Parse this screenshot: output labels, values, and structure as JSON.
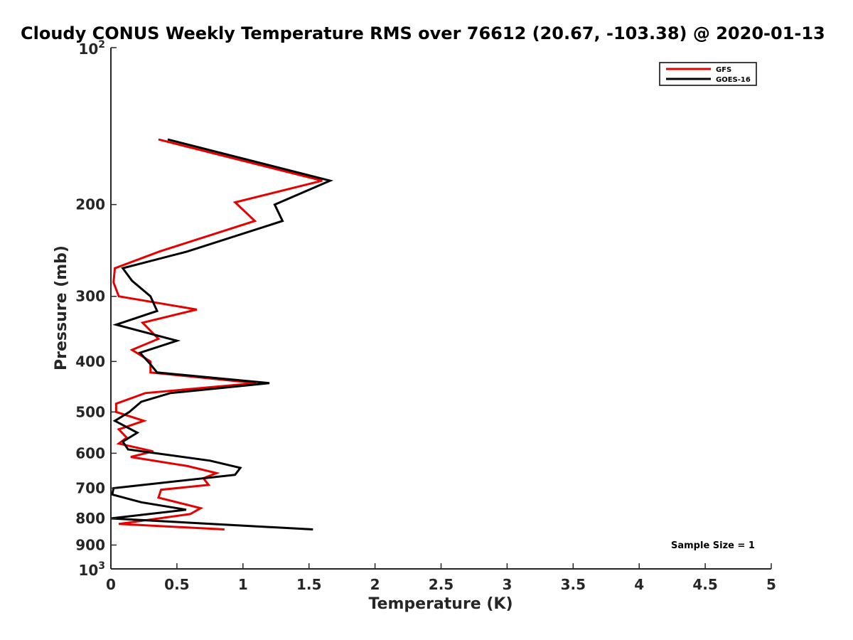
{
  "chart_data": {
    "type": "line",
    "title": "Cloudy CONUS Weekly Temperature RMS over 76612 (20.67, -103.38) @ 2020-01-13",
    "xlabel": "Temperature (K)",
    "ylabel": "Pressure (mb)",
    "xlim": [
      0,
      5
    ],
    "ylim": [
      100,
      1000
    ],
    "y_scale": "log",
    "y_reversed": true,
    "grid": false,
    "legend_position": "top-right",
    "x_ticks": [
      "0",
      "0.5",
      "1",
      "1.5",
      "2",
      "2.5",
      "3",
      "3.5",
      "4",
      "4.5",
      "5"
    ],
    "y_ticks": [
      {
        "value": 100,
        "base": "10",
        "exp": "2"
      },
      {
        "value": 200,
        "label": "200"
      },
      {
        "value": 300,
        "label": "300"
      },
      {
        "value": 400,
        "label": "400"
      },
      {
        "value": 500,
        "label": "500"
      },
      {
        "value": 600,
        "label": "600"
      },
      {
        "value": 700,
        "label": "700"
      },
      {
        "value": 800,
        "label": "800"
      },
      {
        "value": 900,
        "label": "900"
      },
      {
        "value": 1000,
        "base": "10",
        "exp": "3"
      }
    ],
    "annotation": "Sample Size = 1",
    "series": [
      {
        "name": "GFS",
        "color": "#e60000",
        "points": [
          [
            0.36,
            150
          ],
          [
            1.6,
            180
          ],
          [
            0.94,
            198
          ],
          [
            1.09,
            215
          ],
          [
            0.37,
            246
          ],
          [
            0.03,
            265
          ],
          [
            0.02,
            282
          ],
          [
            0.06,
            300
          ],
          [
            0.65,
            318
          ],
          [
            0.24,
            337
          ],
          [
            0.36,
            362
          ],
          [
            0.16,
            380
          ],
          [
            0.3,
            400
          ],
          [
            0.3,
            420
          ],
          [
            1.1,
            440
          ],
          [
            0.26,
            460
          ],
          [
            0.04,
            482
          ],
          [
            0.04,
            500
          ],
          [
            0.25,
            520
          ],
          [
            0.06,
            540
          ],
          [
            0.12,
            560
          ],
          [
            0.06,
            575
          ],
          [
            0.32,
            595
          ],
          [
            0.15,
            610
          ],
          [
            0.58,
            635
          ],
          [
            0.8,
            655
          ],
          [
            0.7,
            670
          ],
          [
            0.74,
            690
          ],
          [
            0.38,
            705
          ],
          [
            0.36,
            730
          ],
          [
            0.68,
            765
          ],
          [
            0.6,
            785
          ],
          [
            0.06,
            820
          ],
          [
            0.86,
            840
          ]
        ]
      },
      {
        "name": "GOES-16",
        "color": "#000000",
        "points": [
          [
            0.43,
            150
          ],
          [
            1.66,
            180
          ],
          [
            1.24,
            200
          ],
          [
            1.3,
            215
          ],
          [
            0.58,
            246
          ],
          [
            0.09,
            265
          ],
          [
            0.16,
            280
          ],
          [
            0.3,
            300
          ],
          [
            0.35,
            320
          ],
          [
            0.04,
            340
          ],
          [
            0.5,
            365
          ],
          [
            0.22,
            385
          ],
          [
            0.3,
            405
          ],
          [
            0.35,
            420
          ],
          [
            1.2,
            440
          ],
          [
            0.45,
            460
          ],
          [
            0.23,
            478
          ],
          [
            0.14,
            500
          ],
          [
            0.03,
            520
          ],
          [
            0.2,
            548
          ],
          [
            0.09,
            570
          ],
          [
            0.13,
            590
          ],
          [
            0.75,
            620
          ],
          [
            0.98,
            640
          ],
          [
            0.94,
            660
          ],
          [
            0.02,
            700
          ],
          [
            0.01,
            720
          ],
          [
            0.23,
            745
          ],
          [
            0.57,
            770
          ],
          [
            0.0,
            800
          ],
          [
            1.53,
            840
          ]
        ]
      }
    ]
  }
}
